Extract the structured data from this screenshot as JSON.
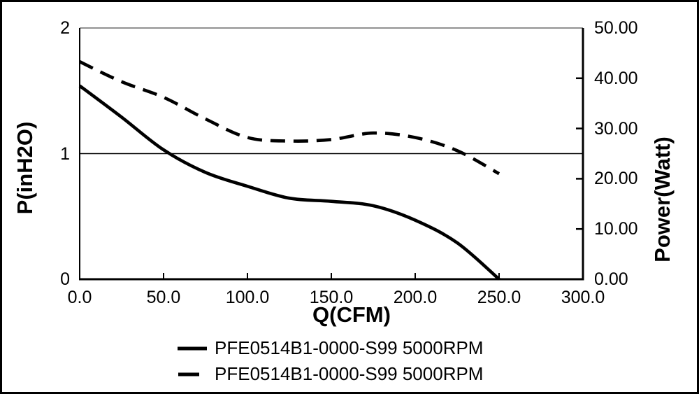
{
  "chart_data": {
    "type": "line",
    "title": "",
    "x_axis": {
      "label": "Q(CFM)",
      "min": 0,
      "max": 300,
      "ticks": [
        {
          "v": 0,
          "label": "0.0"
        },
        {
          "v": 50,
          "label": "50.0"
        },
        {
          "v": 100,
          "label": "100.0"
        },
        {
          "v": 150,
          "label": "150.0"
        },
        {
          "v": 200,
          "label": "200.0"
        },
        {
          "v": 250,
          "label": "250.0"
        },
        {
          "v": 300,
          "label": "300.0"
        }
      ]
    },
    "y_left": {
      "label": "P(inH2O)",
      "min": 0,
      "max": 2,
      "ticks": [
        {
          "v": 0,
          "label": "0"
        },
        {
          "v": 1,
          "label": "1"
        },
        {
          "v": 2,
          "label": "2"
        }
      ]
    },
    "y_right": {
      "label": "Power(Watt)",
      "min": 0,
      "max": 50,
      "ticks": [
        {
          "v": 0,
          "label": "0.00"
        },
        {
          "v": 10,
          "label": "10.00"
        },
        {
          "v": 20,
          "label": "20.00"
        },
        {
          "v": 30,
          "label": "30.00"
        },
        {
          "v": 40,
          "label": "40.00"
        },
        {
          "v": 50,
          "label": "50.00"
        }
      ]
    },
    "gridlines_left_values": [
      1
    ],
    "series": [
      {
        "name": "PFE0514B1-0000-S99 5000RPM",
        "style": "solid",
        "axis": "left",
        "points": [
          [
            0,
            1.54
          ],
          [
            25,
            1.29
          ],
          [
            50,
            1.03
          ],
          [
            75,
            0.85
          ],
          [
            100,
            0.74
          ],
          [
            125,
            0.645
          ],
          [
            150,
            0.62
          ],
          [
            175,
            0.585
          ],
          [
            200,
            0.47
          ],
          [
            225,
            0.29
          ],
          [
            250,
            0
          ]
        ]
      },
      {
        "name": "PFE0514B1-0000-S99 5000RPM",
        "style": "dashed",
        "axis": "right",
        "points": [
          [
            0,
            43.3
          ],
          [
            25,
            39.3
          ],
          [
            50,
            36.2
          ],
          [
            75,
            31.9
          ],
          [
            100,
            28.2
          ],
          [
            125,
            27.5
          ],
          [
            150,
            27.8
          ],
          [
            175,
            29.1
          ],
          [
            200,
            28.2
          ],
          [
            225,
            25.6
          ],
          [
            250,
            21.0
          ]
        ]
      }
    ],
    "legend_position": "bottom",
    "colors": {
      "line": "#000000",
      "background": "#ffffff",
      "frame": "#000000",
      "frame_top": "#6e6e6e"
    }
  },
  "legend": {
    "items": [
      {
        "style": "solid",
        "label": "PFE0514B1-0000-S99 5000RPM"
      },
      {
        "style": "dashed",
        "label": "PFE0514B1-0000-S99 5000RPM"
      }
    ]
  }
}
